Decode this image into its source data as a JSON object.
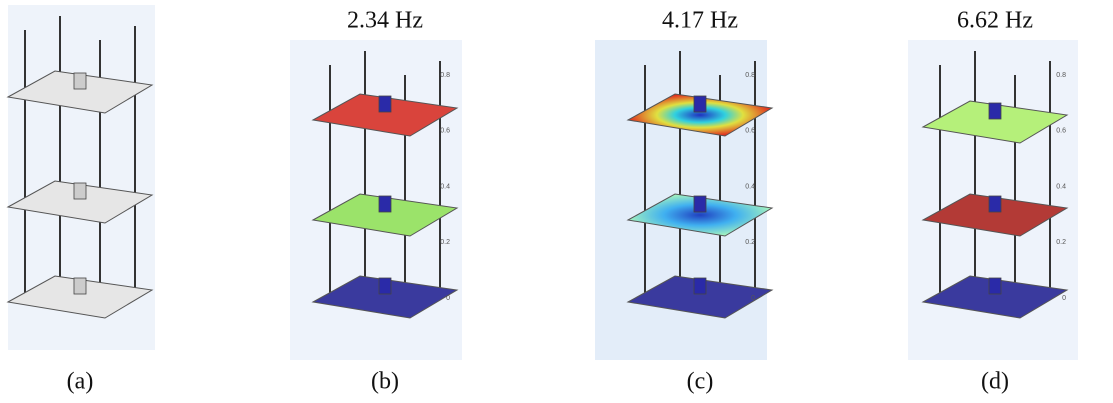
{
  "panels": [
    {
      "label": "(a)"
    },
    {
      "title": "2.34 Hz",
      "label": "(b)",
      "z_ticks": [
        "0.8",
        "0.6",
        "0.4",
        "0.2",
        "0"
      ]
    },
    {
      "title": "4.17 Hz",
      "label": "(c)",
      "z_ticks": [
        "0.8",
        "0.6",
        "0.4",
        "0.2",
        "0"
      ]
    },
    {
      "title": "6.62 Hz",
      "label": "(d)",
      "z_ticks": [
        "0.8",
        "0.6",
        "0.4",
        "0.2",
        "0"
      ]
    }
  ]
}
